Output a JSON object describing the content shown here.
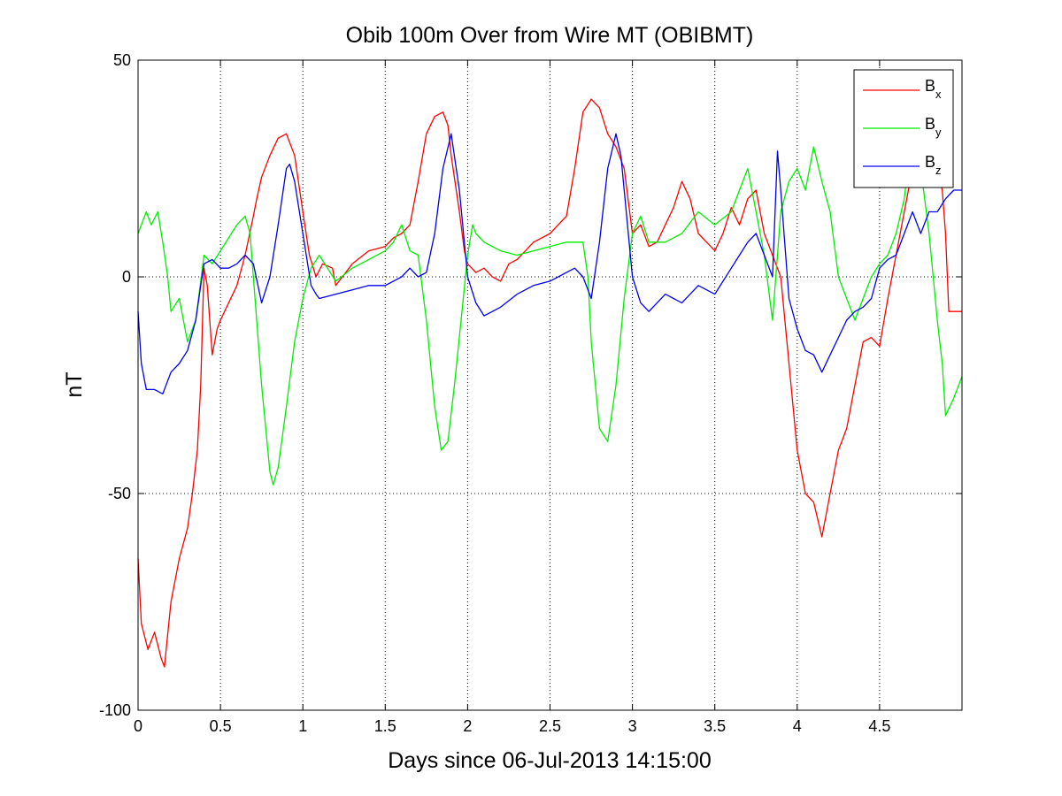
{
  "chart_data": {
    "type": "line",
    "title": "Obib 100m Over from Wire MT (OBIBMT)",
    "xlabel": "Days since 06-Jul-2013 14:15:00",
    "ylabel": "nT",
    "xlim": [
      0,
      5.0
    ],
    "ylim": [
      -100,
      50
    ],
    "xticks": [
      0,
      0.5,
      1,
      1.5,
      2,
      2.5,
      3,
      3.5,
      4,
      4.5
    ],
    "xtick_labels": [
      "0",
      "0.5",
      "1",
      "1.5",
      "2",
      "2.5",
      "3",
      "3.5",
      "4",
      "4.5"
    ],
    "yticks": [
      -100,
      -50,
      0,
      50
    ],
    "ytick_labels": [
      "-100",
      "-50",
      "0",
      "50"
    ],
    "grid": true,
    "legend_position": "top-right",
    "series": [
      {
        "name": "Bx",
        "letter": "B",
        "subscript": "x",
        "color": "#ff0000",
        "x": [
          0,
          0.02,
          0.06,
          0.1,
          0.14,
          0.16,
          0.2,
          0.25,
          0.3,
          0.33,
          0.36,
          0.38,
          0.4,
          0.42,
          0.45,
          0.48,
          0.5,
          0.55,
          0.6,
          0.65,
          0.7,
          0.72,
          0.75,
          0.8,
          0.85,
          0.9,
          0.95,
          1.0,
          1.04,
          1.08,
          1.12,
          1.18,
          1.2,
          1.3,
          1.4,
          1.5,
          1.55,
          1.6,
          1.65,
          1.7,
          1.75,
          1.8,
          1.85,
          1.88,
          1.9,
          1.95,
          1.98,
          2.0,
          2.05,
          2.1,
          2.15,
          2.2,
          2.25,
          2.3,
          2.4,
          2.5,
          2.55,
          2.6,
          2.65,
          2.7,
          2.75,
          2.8,
          2.85,
          2.9,
          2.95,
          3.0,
          3.05,
          3.1,
          3.15,
          3.2,
          3.25,
          3.3,
          3.35,
          3.4,
          3.45,
          3.5,
          3.55,
          3.6,
          3.65,
          3.7,
          3.75,
          3.8,
          3.85,
          3.9,
          3.95,
          4.0,
          4.05,
          4.1,
          4.15,
          4.2,
          4.25,
          4.3,
          4.35,
          4.4,
          4.45,
          4.5,
          4.55,
          4.6,
          4.65,
          4.7,
          4.75,
          4.8,
          4.85,
          4.88,
          4.9,
          4.92,
          4.95,
          5.0
        ],
        "values": [
          -65,
          -80,
          -86,
          -82,
          -88,
          -90,
          -75,
          -65,
          -58,
          -50,
          -40,
          -25,
          2,
          -2,
          -18,
          -12,
          -10,
          -6,
          -2,
          5,
          14,
          18,
          23,
          28,
          32,
          33,
          28,
          15,
          5,
          0,
          3,
          2,
          -2,
          3,
          6,
          7,
          9,
          10,
          12,
          22,
          33,
          37,
          38,
          35,
          28,
          15,
          6,
          3,
          1,
          2,
          0,
          -1,
          3,
          4,
          8,
          10,
          12,
          14,
          25,
          38,
          41,
          39,
          33,
          30,
          25,
          10,
          12,
          7,
          8,
          12,
          16,
          22,
          18,
          10,
          8,
          6,
          10,
          16,
          12,
          18,
          20,
          10,
          5,
          0,
          -20,
          -40,
          -50,
          -52,
          -60,
          -50,
          -40,
          -35,
          -25,
          -15,
          -14,
          -16,
          -5,
          5,
          15,
          25,
          30,
          28,
          25,
          20,
          10,
          -8,
          -8,
          -8
        ]
      },
      {
        "name": "By",
        "letter": "B",
        "subscript": "y",
        "color": "#00ee00",
        "x": [
          0,
          0.05,
          0.08,
          0.12,
          0.15,
          0.18,
          0.2,
          0.25,
          0.3,
          0.35,
          0.4,
          0.45,
          0.5,
          0.55,
          0.6,
          0.65,
          0.68,
          0.7,
          0.75,
          0.8,
          0.82,
          0.85,
          0.9,
          0.95,
          1.0,
          1.05,
          1.1,
          1.2,
          1.3,
          1.4,
          1.5,
          1.55,
          1.6,
          1.65,
          1.7,
          1.75,
          1.8,
          1.84,
          1.88,
          1.92,
          1.96,
          2.0,
          2.03,
          2.05,
          2.1,
          2.2,
          2.3,
          2.4,
          2.5,
          2.6,
          2.7,
          2.73,
          2.75,
          2.8,
          2.85,
          2.9,
          2.95,
          3.0,
          3.05,
          3.1,
          3.2,
          3.3,
          3.4,
          3.5,
          3.6,
          3.65,
          3.7,
          3.75,
          3.8,
          3.85,
          3.9,
          3.95,
          4.0,
          4.05,
          4.1,
          4.15,
          4.2,
          4.25,
          4.3,
          4.35,
          4.4,
          4.45,
          4.5,
          4.55,
          4.6,
          4.65,
          4.7,
          4.75,
          4.8,
          4.85,
          4.88,
          4.9,
          4.95,
          5.0
        ],
        "values": [
          10,
          15,
          12,
          15,
          8,
          0,
          -8,
          -5,
          -15,
          -10,
          5,
          3,
          6,
          9,
          12,
          14,
          10,
          0,
          -25,
          -45,
          -48,
          -44,
          -30,
          -15,
          -5,
          2,
          5,
          -1,
          2,
          4,
          6,
          8,
          12,
          6,
          5,
          -10,
          -30,
          -40,
          -38,
          -25,
          -10,
          5,
          12,
          10,
          8,
          6,
          5,
          6,
          7,
          8,
          8,
          0,
          -15,
          -35,
          -38,
          -25,
          -5,
          10,
          14,
          8,
          8,
          10,
          15,
          12,
          15,
          20,
          25,
          15,
          5,
          -10,
          15,
          22,
          25,
          20,
          30,
          22,
          15,
          0,
          -5,
          -10,
          -5,
          0,
          3,
          5,
          10,
          18,
          35,
          25,
          10,
          -10,
          -20,
          -32,
          -28,
          -23
        ]
      },
      {
        "name": "Bz",
        "letter": "B",
        "subscript": "z",
        "color": "#0000ee",
        "x": [
          0,
          0.02,
          0.05,
          0.1,
          0.15,
          0.2,
          0.25,
          0.3,
          0.35,
          0.38,
          0.4,
          0.45,
          0.5,
          0.55,
          0.6,
          0.65,
          0.7,
          0.75,
          0.8,
          0.85,
          0.9,
          0.92,
          0.95,
          1.0,
          1.05,
          1.08,
          1.1,
          1.2,
          1.3,
          1.4,
          1.5,
          1.6,
          1.65,
          1.7,
          1.75,
          1.8,
          1.85,
          1.9,
          1.95,
          2.0,
          2.05,
          2.1,
          2.2,
          2.3,
          2.4,
          2.5,
          2.6,
          2.65,
          2.7,
          2.75,
          2.8,
          2.85,
          2.9,
          2.93,
          2.95,
          3.0,
          3.05,
          3.1,
          3.15,
          3.2,
          3.3,
          3.4,
          3.5,
          3.6,
          3.65,
          3.7,
          3.75,
          3.8,
          3.85,
          3.88,
          3.9,
          3.95,
          4.0,
          4.05,
          4.1,
          4.15,
          4.2,
          4.25,
          4.3,
          4.35,
          4.4,
          4.45,
          4.5,
          4.55,
          4.6,
          4.65,
          4.7,
          4.75,
          4.8,
          4.85,
          4.9,
          4.95,
          5.0
        ],
        "values": [
          -8,
          -20,
          -26,
          -26,
          -27,
          -22,
          -20,
          -17,
          -10,
          -2,
          3,
          4,
          2,
          2,
          3,
          5,
          3,
          -6,
          0,
          12,
          25,
          26,
          22,
          10,
          -2,
          -4,
          -5,
          -4,
          -3,
          -2,
          -2,
          0,
          2,
          0,
          1,
          10,
          25,
          33,
          20,
          0,
          -6,
          -9,
          -7,
          -4,
          -2,
          -1,
          1,
          2,
          0,
          -5,
          8,
          25,
          33,
          28,
          20,
          0,
          -6,
          -8,
          -6,
          -4,
          -6,
          -2,
          -4,
          2,
          5,
          8,
          10,
          5,
          0,
          29,
          20,
          -5,
          -12,
          -17,
          -18,
          -22,
          -18,
          -14,
          -10,
          -8,
          -7,
          -5,
          2,
          4,
          5,
          10,
          15,
          10,
          15,
          15,
          18,
          20,
          20
        ]
      }
    ]
  }
}
